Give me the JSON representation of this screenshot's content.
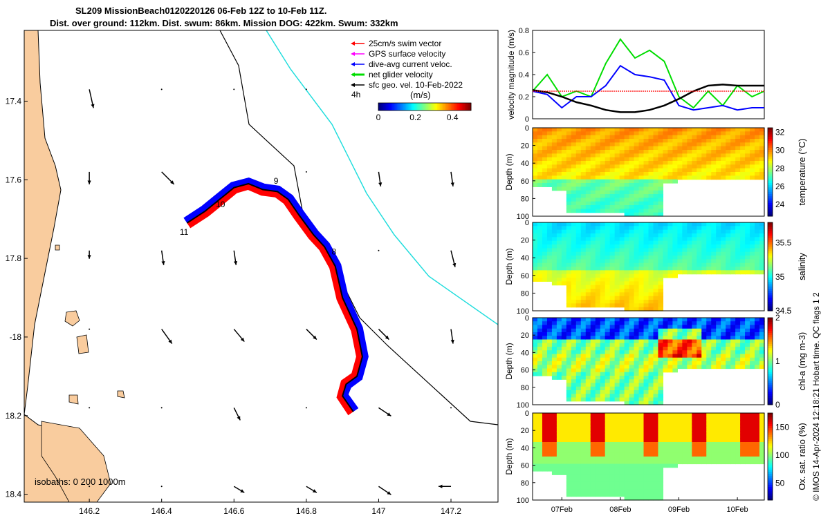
{
  "header": {
    "line1": "SL209 MissionBeach0120220126 06-Feb 12Z to 10-Feb 11Z.",
    "line2": "Dist. over ground: 112km. Dist. swum: 86km. Mission DOG: 422km. Swum: 332km"
  },
  "credit": "© IMOS 14-Apr-2024 12:18:21 Hobart time. QC flags 1 2",
  "colors": {
    "land": "#f9cc9e",
    "swim_vector": "#ff0000",
    "gps_velocity": "#ff00ff",
    "dive_avg_current": "#0000ff",
    "net_glider": "#00dd00",
    "sfc_geo": "#000000",
    "isobath_200": "#000000",
    "isobath_1000": "#22dddd"
  },
  "chart_data": [
    {
      "type": "scatter",
      "id": "map",
      "xlim": [
        146.02,
        147.33
      ],
      "ylim": [
        -18.42,
        -17.22
      ],
      "x_ticks": [
        146.2,
        146.4,
        146.6,
        146.8,
        147,
        147.2
      ],
      "x_tick_labels": [
        "146.2",
        "146.4",
        "146.6",
        "146.8",
        "147",
        "147.2"
      ],
      "y_ticks": [
        -17.4,
        -17.6,
        -17.8,
        -18,
        -18.2,
        -18.4
      ],
      "y_tick_labels": [
        "17.4",
        "17.6",
        "17.8",
        "-18",
        "18.2",
        "18.4"
      ],
      "legend": [
        {
          "label": "25cm/s swim vector",
          "color": "#ff0000"
        },
        {
          "label": "GPS surface velocity",
          "color": "#ff00ff"
        },
        {
          "label": "dive-avg current veloc.",
          "color": "#0000ff"
        },
        {
          "label": "net glider velocity",
          "color": "#00dd00"
        },
        {
          "label": "sfc geo. vel. 10-Feb-2022",
          "color": "#000000"
        }
      ],
      "legend_4h": "4h",
      "colorbar": {
        "unit": "(m/s)",
        "ticks": [
          0,
          0.2,
          0.4
        ],
        "tick_labels": [
          "0",
          "0.2",
          "0.4"
        ],
        "range": [
          0,
          0.5
        ]
      },
      "isobath_label": "isobaths: 0 200 1000m",
      "track": [
        {
          "lon": 146.47,
          "lat": -17.71
        },
        {
          "lon": 146.52,
          "lat": -17.68
        },
        {
          "lon": 146.56,
          "lat": -17.65
        },
        {
          "lon": 146.6,
          "lat": -17.62
        },
        {
          "lon": 146.64,
          "lat": -17.61
        },
        {
          "lon": 146.68,
          "lat": -17.625
        },
        {
          "lon": 146.72,
          "lat": -17.63
        },
        {
          "lon": 146.75,
          "lat": -17.65
        },
        {
          "lon": 146.78,
          "lat": -17.69
        },
        {
          "lon": 146.82,
          "lat": -17.74
        },
        {
          "lon": 146.85,
          "lat": -17.77
        },
        {
          "lon": 146.88,
          "lat": -17.82
        },
        {
          "lon": 146.9,
          "lat": -17.9
        },
        {
          "lon": 146.94,
          "lat": -17.98
        },
        {
          "lon": 146.955,
          "lat": -18.05
        },
        {
          "lon": 146.94,
          "lat": -18.1
        },
        {
          "lon": 146.91,
          "lat": -18.12
        },
        {
          "lon": 146.9,
          "lat": -18.15
        },
        {
          "lon": 146.93,
          "lat": -18.19
        }
      ],
      "day_labels": [
        {
          "text": "8",
          "lon": 146.87,
          "lat": -17.79
        },
        {
          "text": "9",
          "lon": 146.71,
          "lat": -17.61
        },
        {
          "text": "10",
          "lon": 146.55,
          "lat": -17.67
        },
        {
          "text": "11",
          "lon": 146.45,
          "lat": -17.74
        }
      ],
      "current_vectors": [
        {
          "lon": 146.2,
          "lat": -17.37,
          "u": 0.02,
          "v": -0.09
        },
        {
          "lon": 146.4,
          "lat": -17.37,
          "u": 0.0,
          "v": 0.0
        },
        {
          "lon": 146.6,
          "lat": -17.37,
          "u": 0.0,
          "v": 0.0
        },
        {
          "lon": 146.8,
          "lat": -17.37,
          "u": 0.0,
          "v": 0.0
        },
        {
          "lon": 147.0,
          "lat": -17.37,
          "u": 0.0,
          "v": 0.0
        },
        {
          "lon": 147.2,
          "lat": -17.37,
          "u": 0.0,
          "v": 0.0
        },
        {
          "lon": 146.2,
          "lat": -17.58,
          "u": 0.0,
          "v": -0.06
        },
        {
          "lon": 146.4,
          "lat": -17.58,
          "u": 0.06,
          "v": -0.06
        },
        {
          "lon": 146.8,
          "lat": -17.58,
          "u": 0.0,
          "v": 0.0
        },
        {
          "lon": 147.0,
          "lat": -17.58,
          "u": 0.01,
          "v": -0.07
        },
        {
          "lon": 147.2,
          "lat": -17.58,
          "u": 0.01,
          "v": -0.07
        },
        {
          "lon": 146.2,
          "lat": -17.78,
          "u": 0.0,
          "v": -0.04
        },
        {
          "lon": 146.4,
          "lat": -17.78,
          "u": 0.01,
          "v": -0.07
        },
        {
          "lon": 146.6,
          "lat": -17.78,
          "u": 0.01,
          "v": -0.07
        },
        {
          "lon": 147.0,
          "lat": -17.78,
          "u": 0.0,
          "v": 0.0
        },
        {
          "lon": 147.2,
          "lat": -17.78,
          "u": 0.02,
          "v": -0.08
        },
        {
          "lon": 146.2,
          "lat": -17.98,
          "u": 0.0,
          "v": 0.0
        },
        {
          "lon": 146.4,
          "lat": -17.98,
          "u": 0.05,
          "v": -0.07
        },
        {
          "lon": 146.6,
          "lat": -17.98,
          "u": 0.05,
          "v": -0.06
        },
        {
          "lon": 146.8,
          "lat": -17.98,
          "u": 0.05,
          "v": -0.05
        },
        {
          "lon": 147.0,
          "lat": -17.98,
          "u": 0.05,
          "v": -0.05
        },
        {
          "lon": 147.2,
          "lat": -17.98,
          "u": 0.01,
          "v": -0.07
        },
        {
          "lon": 146.2,
          "lat": -18.18,
          "u": 0.0,
          "v": 0.0
        },
        {
          "lon": 146.4,
          "lat": -18.18,
          "u": 0.0,
          "v": 0.0
        },
        {
          "lon": 146.6,
          "lat": -18.18,
          "u": 0.03,
          "v": -0.06
        },
        {
          "lon": 146.8,
          "lat": -18.18,
          "u": 0.0,
          "v": 0.0
        },
        {
          "lon": 147.0,
          "lat": -18.18,
          "u": 0.06,
          "v": -0.04
        },
        {
          "lon": 147.2,
          "lat": -18.18,
          "u": 0.0,
          "v": 0.0
        },
        {
          "lon": 146.2,
          "lat": -18.38,
          "u": 0.0,
          "v": 0.0
        },
        {
          "lon": 146.4,
          "lat": -18.38,
          "u": 0.0,
          "v": 0.0
        },
        {
          "lon": 146.6,
          "lat": -18.38,
          "u": 0.05,
          "v": -0.03
        },
        {
          "lon": 146.8,
          "lat": -18.38,
          "u": 0.05,
          "v": -0.03
        },
        {
          "lon": 147.0,
          "lat": -18.38,
          "u": 0.06,
          "v": -0.04
        },
        {
          "lon": 147.2,
          "lat": -18.38,
          "u": -0.06,
          "v": 0.0
        }
      ]
    },
    {
      "type": "line",
      "id": "velocity",
      "ylabel": "velocity magnitude (m/s)",
      "ylim": [
        0,
        0.8
      ],
      "y_ticks": [
        0,
        0.2,
        0.4,
        0.6,
        0.8
      ],
      "y_tick_labels": [
        "0",
        "0.2",
        "0.4",
        "0.6",
        "0.8"
      ],
      "x": [
        0,
        0.25,
        0.5,
        0.75,
        1.0,
        1.25,
        1.5,
        1.75,
        2.0,
        2.25,
        2.5,
        2.75,
        3.0,
        3.25,
        3.5,
        3.75,
        3.96
      ],
      "series": [
        {
          "color": "#00dd00",
          "values": [
            0.25,
            0.4,
            0.2,
            0.25,
            0.2,
            0.5,
            0.72,
            0.55,
            0.62,
            0.52,
            0.2,
            0.1,
            0.25,
            0.12,
            0.3,
            0.2,
            0.25
          ]
        },
        {
          "color": "#0000ff",
          "values": [
            0.25,
            0.22,
            0.1,
            0.2,
            0.2,
            0.3,
            0.48,
            0.4,
            0.38,
            0.35,
            0.12,
            0.08,
            0.1,
            0.12,
            0.08,
            0.1,
            0.1
          ]
        },
        {
          "color": "#000000",
          "values": [
            0.26,
            0.24,
            0.2,
            0.15,
            0.12,
            0.08,
            0.06,
            0.06,
            0.08,
            0.12,
            0.18,
            0.25,
            0.3,
            0.31,
            0.3,
            0.3,
            0.3
          ]
        },
        {
          "color": "#ff0000",
          "values": [
            0.25,
            0.25,
            0.25,
            0.25,
            0.25,
            0.25,
            0.25,
            0.25,
            0.25,
            0.25,
            0.25,
            0.25,
            0.25,
            0.25,
            0.25,
            0.25,
            0.25
          ]
        }
      ]
    },
    {
      "type": "heatmap",
      "id": "temperature",
      "ylabel": "Depth (m)",
      "y_ticks": [
        0,
        20,
        40,
        60,
        80,
        100
      ],
      "colorbar": {
        "label": "temperature (°C)",
        "ticks": [
          24,
          26,
          28,
          30,
          32
        ],
        "range": [
          22.7,
          32.5
        ]
      },
      "typical_value": 29
    },
    {
      "type": "heatmap",
      "id": "salinity",
      "ylabel": "Depth (m)",
      "y_ticks": [
        0,
        20,
        40,
        60,
        80,
        100
      ],
      "colorbar": {
        "label": "salinity",
        "ticks": [
          34.5,
          35,
          35.5
        ],
        "tick_labels": [
          "34.5",
          "35",
          "35.5"
        ],
        "range": [
          34.5,
          35.8
        ]
      },
      "typical_value": 35.05
    },
    {
      "type": "heatmap",
      "id": "chlorophyll",
      "ylabel": "Depth (m)",
      "y_ticks": [
        0,
        20,
        40,
        60,
        80,
        100
      ],
      "colorbar": {
        "label": "chl-a (mg m-3)",
        "ticks": [
          0,
          1,
          2
        ],
        "range": [
          0,
          2
        ]
      },
      "typical_value": 1
    },
    {
      "type": "heatmap",
      "id": "oxygen",
      "ylabel": "Depth (m)",
      "y_ticks": [
        0,
        20,
        40,
        60,
        80,
        100
      ],
      "colorbar": {
        "label": "Ox. sat. ratio (%)",
        "ticks": [
          50,
          100,
          150
        ],
        "range": [
          20,
          175
        ]
      },
      "typical_value": 100
    }
  ],
  "time_axis": {
    "x_range": [
      0,
      3.96
    ],
    "ticks": [
      0.5,
      1.5,
      2.5,
      3.5
    ],
    "tick_labels": [
      "07Feb",
      "08Feb",
      "09Feb",
      "10Feb"
    ]
  }
}
